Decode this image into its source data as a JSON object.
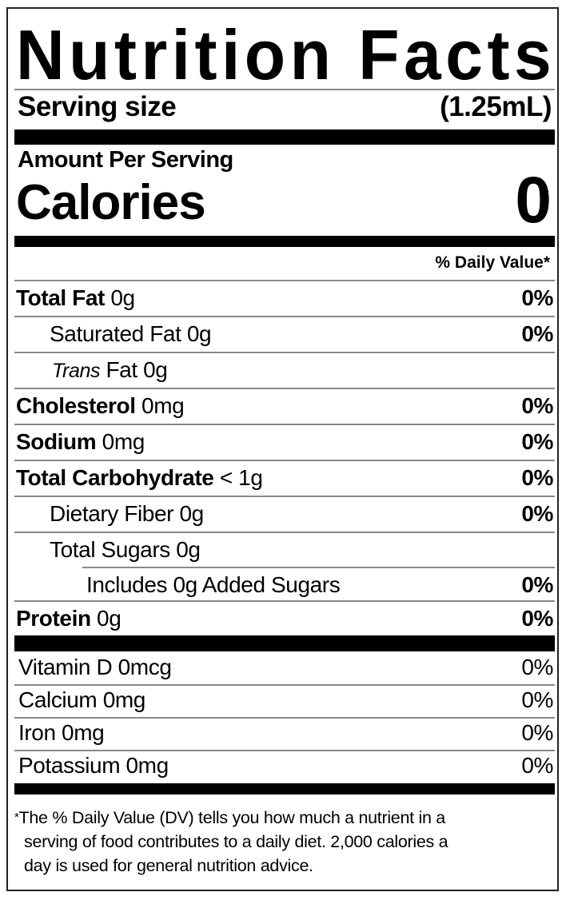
{
  "title": "Nutrition Facts",
  "serving": {
    "label": "Serving size",
    "value": "(1.25mL)"
  },
  "amount_per_serving": "Amount Per Serving",
  "calories": {
    "label": "Calories",
    "value": "0"
  },
  "daily_value_header": "% Daily Value*",
  "nutrients": [
    {
      "bold": "Total Fat",
      "amount": " 0g",
      "dv": "0%"
    },
    {
      "name": "Saturated Fat",
      "amount": " 0g",
      "dv": "0%"
    },
    {
      "italic": "Trans",
      "name": " Fat",
      "amount": " 0g",
      "dv": ""
    },
    {
      "bold": "Cholesterol",
      "amount": " 0mg",
      "dv": "0%"
    },
    {
      "bold": "Sodium",
      "amount": " 0mg",
      "dv": "0%"
    },
    {
      "bold": "Total Carbohydrate",
      "amount": " < 1g",
      "dv": "0%"
    },
    {
      "name": "Dietary Fiber",
      "amount": " 0g",
      "dv": "0%"
    },
    {
      "name": "Total Sugars",
      "amount": " 0g",
      "dv": ""
    },
    {
      "name": "Includes 0g Added Sugars",
      "amount": "",
      "dv": "0%"
    },
    {
      "bold": "Protein",
      "amount": " 0g",
      "dv": "0%"
    }
  ],
  "vitamins": [
    {
      "label": "Vitamin D 0mcg",
      "dv": "0%"
    },
    {
      "label": "Calcium 0mg",
      "dv": "0%"
    },
    {
      "label": "Iron 0mg",
      "dv": "0%"
    },
    {
      "label": "Potassium 0mg",
      "dv": "0%"
    }
  ],
  "footnote": {
    "star": "*",
    "line1": "The % Daily Value (DV) tells you how much a nutrient in a",
    "line2": "serving of food contributes to a daily diet. 2,000 calories a",
    "line3": "day is used for general nutrition advice."
  }
}
